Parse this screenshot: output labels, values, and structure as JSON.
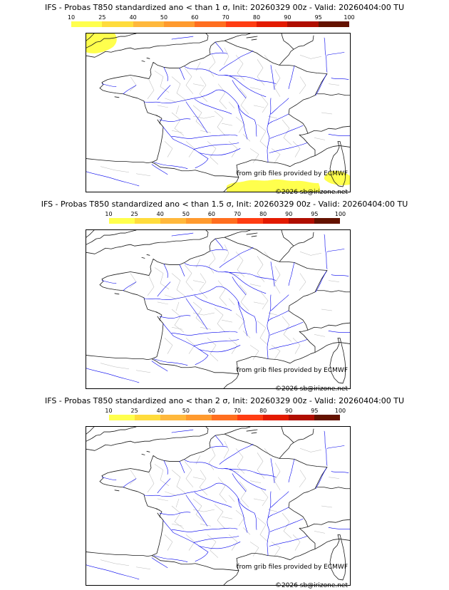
{
  "colorbar": {
    "ticks": [
      "10",
      "25",
      "40",
      "50",
      "60",
      "70",
      "80",
      "90",
      "95",
      "100"
    ],
    "colors": [
      "#ffff4d",
      "#ffdc3c",
      "#ffb83c",
      "#ff9a2e",
      "#ff6e1f",
      "#ff3d12",
      "#e31a00",
      "#b00e00",
      "#641200"
    ]
  },
  "map_style": {
    "coast_border_color": "#1a1a1a",
    "department_boundary_color": "#b9b9b9",
    "river_color": "#0000ee",
    "lowest_probability_fill": "#ffff4d"
  },
  "panels": [
    {
      "title": "IFS - Probas T850  standardized ano < than 1 σ, Init: 20260329 00z - Valid: 20260404:00 TU",
      "threshold": "1 σ",
      "credit": "from grib files provided by ECMWF",
      "copyright": "©2026 sb@irizone.net",
      "shaded_regions": [
        {
          "area": "northwest map corner (Celtic Sea / southern Ireland)",
          "probability_bin": "10-25"
        },
        {
          "area": "southern map edge (Pyrenees / northern Spain)",
          "probability_bin": "10-25"
        },
        {
          "area": "southeast map corner (near Corsica / Ligurian Sea)",
          "probability_bin": "10-25"
        }
      ]
    },
    {
      "title": "IFS - Probas T850  standardized ano < than 1.5 σ, Init: 20260329 00z - Valid: 20260404:00 TU",
      "threshold": "1.5 σ",
      "credit": "from grib files provided by ECMWF",
      "copyright": "©2026 sb@irizone.net",
      "shaded_regions": []
    },
    {
      "title": "IFS - Probas T850  standardized ano < than 2 σ, Init: 20260329 00z - Valid: 20260404:00 TU",
      "threshold": "2 σ",
      "credit": "from grib files provided by ECMWF",
      "copyright": "©2026 sb@irizone.net",
      "shaded_regions": []
    }
  ]
}
